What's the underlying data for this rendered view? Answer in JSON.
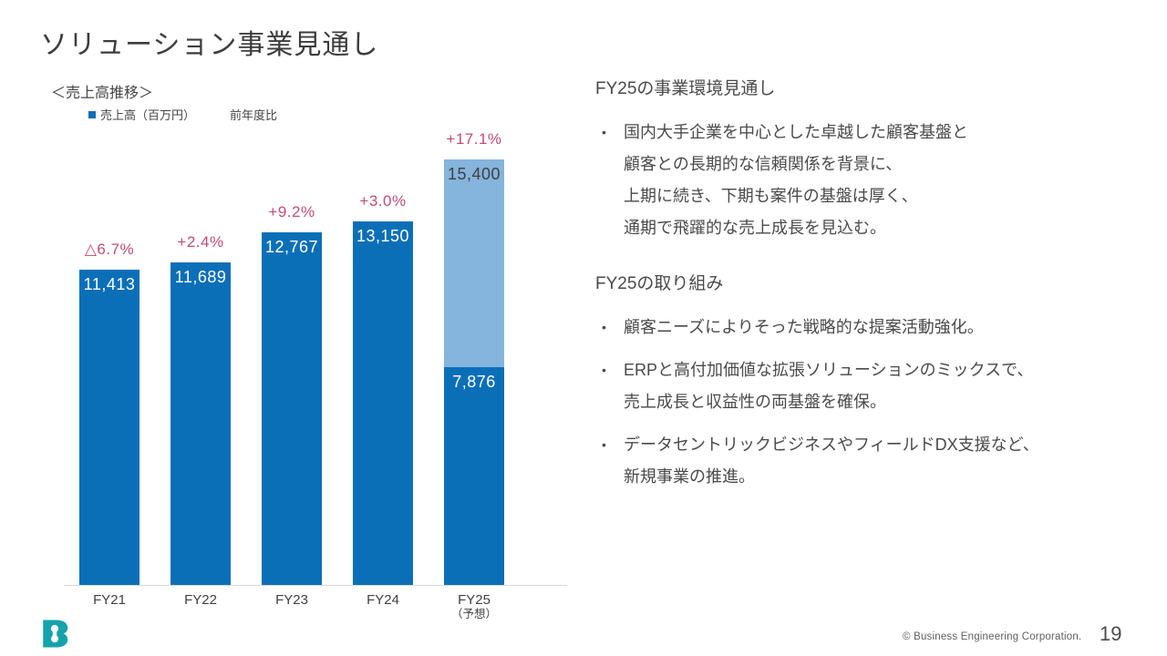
{
  "slide": {
    "title": "ソリューション事業見通し",
    "footer": "© Business Engineering Corporation.",
    "page_number": "19"
  },
  "chart": {
    "section_label": "＜売上高推移＞",
    "legend": {
      "sales_label": "売上高（百万円）",
      "yoy_label": "前年度比"
    }
  },
  "chart_data": {
    "type": "bar",
    "title": "売上高推移（ソリューション事業見通し）",
    "ylabel": "売上高（百万円）",
    "unit": "百万円",
    "ylim": [
      0,
      16600
    ],
    "grid": false,
    "legend_position": "top-left",
    "categories": [
      "FY21",
      "FY22",
      "FY23",
      "FY24",
      "FY25（予想）"
    ],
    "series": [
      {
        "name": "売上高（百万円）",
        "values": [
          11413,
          11689,
          12767,
          13150,
          15400
        ]
      },
      {
        "name": "前年度比",
        "values": [
          "△6.7%",
          "+2.4%",
          "+9.2%",
          "+3.0%",
          "+17.1%"
        ]
      }
    ],
    "fy25_forecast_breakdown": {
      "lower_segment": 7876,
      "upper_segment": 7524,
      "total": 15400
    },
    "colors": {
      "primary": "#0B6FB8",
      "secondary": "#85B4DC",
      "yoy": "#C04C78",
      "label_on_primary": "#FFFFFF",
      "label_on_secondary": "#404040",
      "axis_line": "#D9D9D9"
    },
    "bars": [
      {
        "category": "FY21",
        "note": "",
        "yoy": "△6.7%",
        "segments": [
          {
            "value": 11413,
            "label": "11,413",
            "color": "primary",
            "label_color": "label_on_primary"
          }
        ]
      },
      {
        "category": "FY22",
        "note": "",
        "yoy": "+2.4%",
        "segments": [
          {
            "value": 11689,
            "label": "11,689",
            "color": "primary",
            "label_color": "label_on_primary"
          }
        ]
      },
      {
        "category": "FY23",
        "note": "",
        "yoy": "+9.2%",
        "segments": [
          {
            "value": 12767,
            "label": "12,767",
            "color": "primary",
            "label_color": "label_on_primary"
          }
        ]
      },
      {
        "category": "FY24",
        "note": "",
        "yoy": "+3.0%",
        "segments": [
          {
            "value": 13150,
            "label": "13,150",
            "color": "primary",
            "label_color": "label_on_primary"
          }
        ]
      },
      {
        "category": "FY25",
        "note": "（予想）",
        "yoy": "+17.1%",
        "segments": [
          {
            "value": 7876,
            "label": "7,876",
            "color": "primary",
            "label_color": "label_on_primary"
          },
          {
            "value": 7524,
            "label": "15,400",
            "color": "secondary",
            "label_color": "label_on_secondary"
          }
        ]
      }
    ]
  },
  "right_panel": {
    "sections": [
      {
        "heading": "FY25の事業環境見通し",
        "bullets": [
          "国内大手企業を中心とした卓越した顧客基盤と\n顧客との長期的な信頼関係を背景に、\n上期に続き、下期も案件の基盤は厚く、\n通期で飛躍的な売上成長を見込む。"
        ]
      },
      {
        "heading": "FY25の取り組み",
        "bullets": [
          "顧客ニーズによりそった戦略的な提案活動強化。",
          "ERPと高付加価値な拡張ソリューションのミックスで、\n売上成長と収益性の両基盤を確保。",
          "データセントリックビジネスやフィールドDX支援など、\n新規事業の推進。"
        ]
      }
    ]
  },
  "logo": {
    "name": "Business Engineering B logo",
    "color": "#14A3AC"
  }
}
